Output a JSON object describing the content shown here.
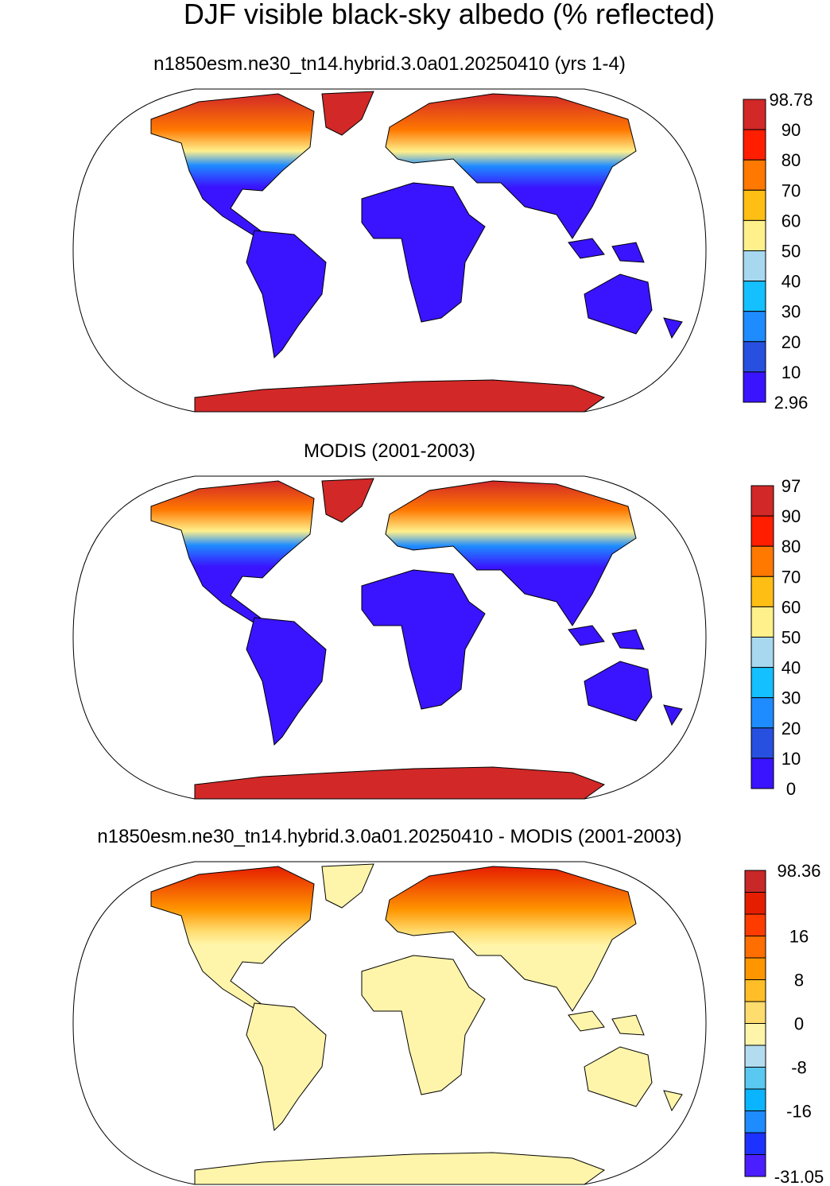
{
  "title": "DJF visible black-sky albedo (% reflected)",
  "panels": [
    {
      "subtitle": "n1850esm.ne30_tn14.hybrid.3.0a01.20250410 (yrs 1-4)",
      "colorbar": {
        "labels": [
          98.78,
          90,
          80,
          70,
          60,
          50,
          40,
          30,
          20,
          10,
          2.96
        ],
        "colors": [
          "#d22828",
          "#ff1e00",
          "#ff7800",
          "#ffbe14",
          "#fff08c",
          "#a8d8f0",
          "#14c0ff",
          "#1e8cff",
          "#2850e0",
          "#3a14ff"
        ]
      }
    },
    {
      "subtitle": "MODIS (2001-2003)",
      "colorbar": {
        "labels": [
          97,
          90,
          80,
          70,
          60,
          50,
          40,
          30,
          20,
          10,
          0
        ],
        "colors": [
          "#d22828",
          "#ff1e00",
          "#ff7800",
          "#ffbe14",
          "#fff08c",
          "#a8d8f0",
          "#14c0ff",
          "#1e8cff",
          "#2850e0",
          "#3a14ff"
        ]
      }
    },
    {
      "subtitle": "n1850esm.ne30_tn14.hybrid.3.0a01.20250410 - MODIS (2001-2003)",
      "colorbar": {
        "labels": [
          98.36,
          16,
          8,
          0,
          -8,
          -16,
          -31.05
        ],
        "colors": [
          "#c82828",
          "#e61e00",
          "#ff3c00",
          "#ff6e00",
          "#ff9600",
          "#ffbe28",
          "#ffdc6e",
          "#fff5aa",
          "#b4dcf0",
          "#5ac8f0",
          "#0ab4ff",
          "#1e8cff",
          "#1e32ff",
          "#4b1eff"
        ]
      }
    }
  ]
}
